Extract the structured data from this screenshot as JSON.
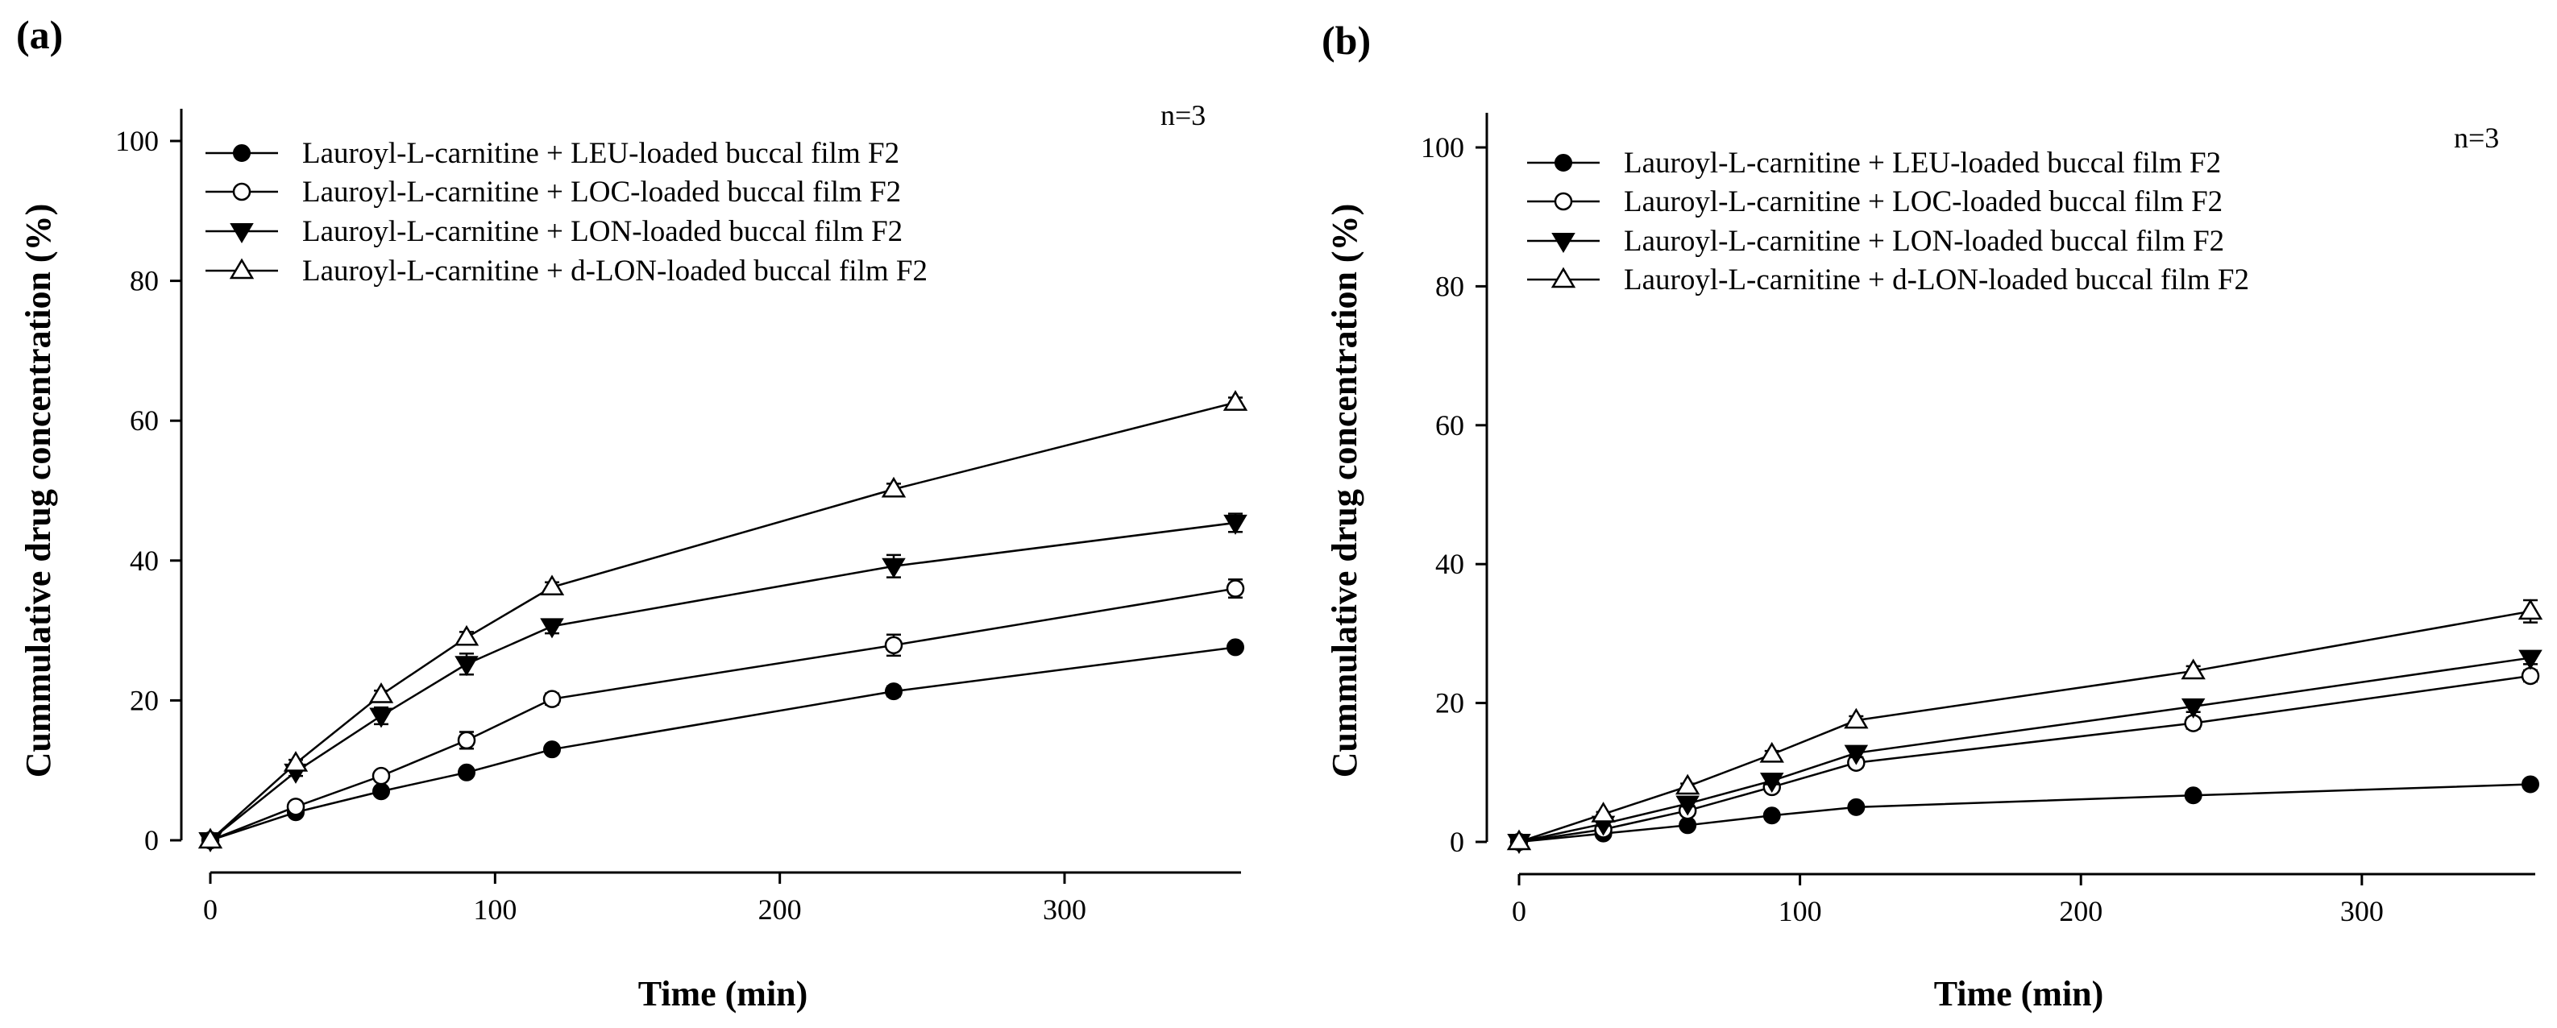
{
  "chart_data": [
    {
      "type": "line",
      "panel_label": "(a)",
      "annotation": "n=3",
      "xlabel": "Time (min)",
      "ylabel": "Cummulative drug concentration (%)",
      "xlim": [
        0,
        360
      ],
      "ylim": [
        0,
        105
      ],
      "xticks": [
        0,
        100,
        200,
        300
      ],
      "yticks": [
        0,
        20,
        40,
        60,
        80,
        100
      ],
      "legend_position": "top-left",
      "x": [
        0,
        30,
        60,
        90,
        120,
        240,
        360
      ],
      "series": [
        {
          "name": "Lauroyl-L-carnitine + LEU-loaded buccal film F2",
          "marker": "filled-circle",
          "values": [
            0,
            4,
            7,
            9.7,
            13,
            21.3,
            27.6
          ],
          "errors": [
            0,
            0.3,
            0.4,
            0.5,
            0.6,
            0.7,
            0.6
          ]
        },
        {
          "name": "Lauroyl-L-carnitine + LOC-loaded buccal film F2",
          "marker": "open-circle",
          "values": [
            0,
            4.8,
            9.2,
            14.3,
            20.2,
            27.9,
            36
          ],
          "errors": [
            0,
            0.4,
            0.6,
            1.2,
            0.8,
            1.5,
            1.3
          ]
        },
        {
          "name": "Lauroyl-L-carnitine + LON-loaded buccal film F2",
          "marker": "filled-triangle-down",
          "values": [
            0,
            9.8,
            17.8,
            25.2,
            30.6,
            39.2,
            45.4
          ],
          "errors": [
            0,
            0.6,
            1.2,
            1.5,
            1.0,
            1.6,
            1.3
          ]
        },
        {
          "name": "Lauroyl-L-carnitine + d-LON-loaded buccal film F2",
          "marker": "open-triangle-up",
          "values": [
            0,
            11,
            20.8,
            29,
            36.2,
            50.2,
            62.6
          ],
          "errors": [
            0,
            0.5,
            0.6,
            0.8,
            0.7,
            0.8,
            0.7
          ]
        }
      ]
    },
    {
      "type": "line",
      "panel_label": "(b)",
      "annotation": "n=3",
      "xlabel": "Time (min)",
      "ylabel": "Cummulative drug concentration (%)",
      "xlim": [
        0,
        360
      ],
      "ylim": [
        0,
        105
      ],
      "xticks": [
        0,
        100,
        200,
        300
      ],
      "yticks": [
        0,
        20,
        40,
        60,
        80,
        100
      ],
      "legend_position": "top-left",
      "x": [
        0,
        30,
        60,
        90,
        120,
        240,
        360
      ],
      "series": [
        {
          "name": "Lauroyl-L-carnitine + LEU-loaded buccal film F2",
          "marker": "filled-circle",
          "values": [
            0,
            1.2,
            2.4,
            3.8,
            5,
            6.7,
            8.3
          ],
          "errors": [
            0,
            0.2,
            0.3,
            0.3,
            0.4,
            0.4,
            0.4
          ]
        },
        {
          "name": "Lauroyl-L-carnitine + LOC-loaded buccal film F2",
          "marker": "open-circle",
          "values": [
            0,
            1.8,
            4.5,
            7.9,
            11.4,
            17.1,
            23.9
          ],
          "errors": [
            0,
            0.3,
            0.4,
            0.6,
            0.7,
            0.8,
            0.8
          ]
        },
        {
          "name": "Lauroyl-L-carnitine + LON-loaded buccal film F2",
          "marker": "filled-triangle-down",
          "values": [
            0,
            2.6,
            5.5,
            8.8,
            12.8,
            19.5,
            26.5
          ],
          "errors": [
            0,
            0.3,
            0.4,
            0.5,
            0.6,
            0.8,
            0.9
          ]
        },
        {
          "name": "Lauroyl-L-carnitine + d-LON-loaded buccal film F2",
          "marker": "open-triangle-up",
          "values": [
            0,
            4,
            8,
            12.6,
            17.5,
            24.6,
            33.2
          ],
          "errors": [
            0,
            0.3,
            0.4,
            0.5,
            0.6,
            0.7,
            1.6
          ]
        }
      ]
    }
  ]
}
